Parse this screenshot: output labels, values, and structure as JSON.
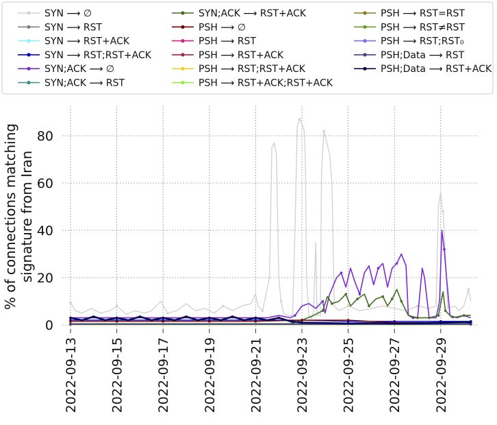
{
  "chart_data": {
    "type": "line",
    "title": "",
    "xlabel": "",
    "ylabel_lines": [
      "% of connections matching",
      "signature from Iran"
    ],
    "xlim": [
      0,
      17.3
    ],
    "ylim": [
      -1,
      92
    ],
    "grid": true,
    "legend_position": "top, outside plot, 3 columns",
    "x_ticks": [
      {
        "t": 0,
        "label": "2022-09-13"
      },
      {
        "t": 2,
        "label": "2022-09-15"
      },
      {
        "t": 4,
        "label": "2022-09-17"
      },
      {
        "t": 6,
        "label": "2022-09-19"
      },
      {
        "t": 8,
        "label": "2022-09-21"
      },
      {
        "t": 10,
        "label": "2022-09-23"
      },
      {
        "t": 12,
        "label": "2022-09-25"
      },
      {
        "t": 14,
        "label": "2022-09-27"
      },
      {
        "t": 16,
        "label": "2022-09-29"
      }
    ],
    "y_ticks": [
      {
        "v": 0,
        "label": "0"
      },
      {
        "v": 20,
        "label": "20"
      },
      {
        "v": 40,
        "label": "40"
      },
      {
        "v": 60,
        "label": "60"
      },
      {
        "v": 80,
        "label": "80"
      }
    ],
    "series": [
      {
        "name": "SYN ⟶ ∅",
        "color": "#d3d3d3",
        "marker": "1",
        "points": [
          [
            0,
            9.5
          ],
          [
            0.2,
            6
          ],
          [
            0.5,
            5
          ],
          [
            0.9,
            7
          ],
          [
            1.3,
            5
          ],
          [
            1.7,
            6
          ],
          [
            2.0,
            8
          ],
          [
            2.4,
            4.5
          ],
          [
            2.8,
            6
          ],
          [
            3.2,
            5
          ],
          [
            3.5,
            6
          ],
          [
            3.9,
            10
          ],
          [
            4.2,
            5
          ],
          [
            4.6,
            6
          ],
          [
            5.0,
            9
          ],
          [
            5.4,
            6
          ],
          [
            5.8,
            7
          ],
          [
            6.2,
            5
          ],
          [
            6.6,
            8
          ],
          [
            7.0,
            6
          ],
          [
            7.4,
            8
          ],
          [
            7.8,
            9
          ],
          [
            8.0,
            13
          ],
          [
            8.1,
            8
          ],
          [
            8.3,
            6
          ],
          [
            8.6,
            20
          ],
          [
            8.7,
            75
          ],
          [
            8.8,
            77
          ],
          [
            8.9,
            72
          ],
          [
            9.0,
            20
          ],
          [
            9.1,
            10
          ],
          [
            9.2,
            5
          ],
          [
            9.4,
            4
          ],
          [
            9.6,
            4
          ],
          [
            9.7,
            40
          ],
          [
            9.8,
            84
          ],
          [
            9.9,
            87
          ],
          [
            10.0,
            85
          ],
          [
            10.1,
            82
          ],
          [
            10.15,
            70
          ],
          [
            10.2,
            20
          ],
          [
            10.3,
            4
          ],
          [
            10.4,
            3
          ],
          [
            10.5,
            5
          ],
          [
            10.6,
            35
          ],
          [
            10.65,
            4
          ],
          [
            10.8,
            4
          ],
          [
            10.85,
            65
          ],
          [
            10.95,
            82
          ],
          [
            11.05,
            78
          ],
          [
            11.2,
            72
          ],
          [
            11.3,
            60
          ],
          [
            11.4,
            8
          ],
          [
            11.6,
            6
          ],
          [
            12.0,
            8
          ],
          [
            12.5,
            6
          ],
          [
            13.0,
            7
          ],
          [
            13.5,
            8
          ],
          [
            14.0,
            7
          ],
          [
            14.5,
            6
          ],
          [
            15.0,
            8
          ],
          [
            15.5,
            7
          ],
          [
            15.8,
            8
          ],
          [
            15.9,
            50
          ],
          [
            16.0,
            56
          ],
          [
            16.05,
            50
          ],
          [
            16.1,
            48
          ],
          [
            16.2,
            30
          ],
          [
            16.3,
            7
          ],
          [
            16.6,
            8
          ],
          [
            16.8,
            6
          ],
          [
            17.0,
            8
          ],
          [
            17.2,
            15
          ],
          [
            17.3,
            10
          ]
        ]
      },
      {
        "name": "SYN ⟶ RST",
        "color": "#808080",
        "marker": "2",
        "points": [
          [
            0,
            0.4
          ],
          [
            17.3,
            0.4
          ]
        ]
      },
      {
        "name": "SYN ⟶ RST+ACK",
        "color": "#87f5f5",
        "marker": "o",
        "points": [
          [
            0,
            0.3
          ],
          [
            17.3,
            0.3
          ]
        ]
      },
      {
        "name": "SYN ⟶ RST;RST+ACK",
        "color": "#0000cc",
        "marker": "d",
        "points": [
          [
            0,
            2
          ],
          [
            2,
            2
          ],
          [
            4,
            2
          ],
          [
            6,
            2
          ],
          [
            8,
            2
          ],
          [
            10,
            2
          ],
          [
            12,
            1.5
          ],
          [
            14,
            1.5
          ],
          [
            16,
            1.5
          ],
          [
            17.3,
            1.5
          ]
        ]
      },
      {
        "name": "SYN;ACK ⟶ ∅",
        "color": "#7b2bd4",
        "marker": "5",
        "points": [
          [
            0,
            3
          ],
          [
            1,
            3
          ],
          [
            2,
            3
          ],
          [
            3,
            3
          ],
          [
            4,
            3
          ],
          [
            5,
            3
          ],
          [
            6,
            3
          ],
          [
            7,
            3
          ],
          [
            8,
            3
          ],
          [
            8.5,
            3
          ],
          [
            9,
            4
          ],
          [
            9.5,
            3
          ],
          [
            9.7,
            4
          ],
          [
            10.0,
            8
          ],
          [
            10.3,
            9
          ],
          [
            10.6,
            7
          ],
          [
            10.9,
            10
          ],
          [
            11.0,
            5
          ],
          [
            11.2,
            13
          ],
          [
            11.5,
            20
          ],
          [
            11.7,
            22
          ],
          [
            11.9,
            16
          ],
          [
            12.1,
            24
          ],
          [
            12.3,
            18
          ],
          [
            12.5,
            13
          ],
          [
            12.7,
            22
          ],
          [
            12.9,
            25
          ],
          [
            13.1,
            17
          ],
          [
            13.3,
            24
          ],
          [
            13.5,
            26
          ],
          [
            13.7,
            16
          ],
          [
            13.9,
            24
          ],
          [
            14.1,
            26
          ],
          [
            14.3,
            30
          ],
          [
            14.5,
            25
          ],
          [
            14.6,
            4
          ],
          [
            14.8,
            3
          ],
          [
            15.0,
            3
          ],
          [
            15.2,
            24
          ],
          [
            15.3,
            20
          ],
          [
            15.5,
            3
          ],
          [
            15.8,
            3
          ],
          [
            15.95,
            10
          ],
          [
            16.05,
            40
          ],
          [
            16.15,
            32
          ],
          [
            16.25,
            20
          ],
          [
            16.4,
            4
          ],
          [
            16.7,
            3
          ],
          [
            17.0,
            4
          ],
          [
            17.3,
            3
          ]
        ]
      },
      {
        "name": "SYN;ACK ⟶ RST",
        "color": "#3f8a8a",
        "marker": "6",
        "points": [
          [
            0,
            0.5
          ],
          [
            17.3,
            0.5
          ]
        ]
      },
      {
        "name": "SYN;ACK ⟶ RST+ACK",
        "color": "#3f6f1f",
        "marker": "7",
        "points": [
          [
            0,
            0.5
          ],
          [
            9.5,
            0.5
          ],
          [
            10.0,
            2
          ],
          [
            10.5,
            4
          ],
          [
            10.9,
            6
          ],
          [
            11.1,
            12
          ],
          [
            11.3,
            9
          ],
          [
            11.6,
            10
          ],
          [
            11.9,
            13
          ],
          [
            12.1,
            8
          ],
          [
            12.4,
            11
          ],
          [
            12.7,
            13
          ],
          [
            12.9,
            8
          ],
          [
            13.2,
            11
          ],
          [
            13.5,
            12
          ],
          [
            13.7,
            8
          ],
          [
            13.9,
            11
          ],
          [
            14.1,
            15
          ],
          [
            14.3,
            10
          ],
          [
            14.6,
            4
          ],
          [
            15.0,
            3
          ],
          [
            15.5,
            3
          ],
          [
            15.9,
            4
          ],
          [
            16.1,
            14
          ],
          [
            16.2,
            6
          ],
          [
            16.5,
            3
          ],
          [
            17.0,
            4
          ],
          [
            17.3,
            4
          ]
        ]
      },
      {
        "name": "PSH ⟶ ∅",
        "color": "#7a0000",
        "marker": "8",
        "points": [
          [
            0,
            1.5
          ],
          [
            2,
            1.5
          ],
          [
            4,
            1.5
          ],
          [
            6,
            1.5
          ],
          [
            8,
            1.5
          ],
          [
            10,
            2
          ],
          [
            12,
            2
          ],
          [
            14,
            1
          ],
          [
            16,
            1
          ],
          [
            17.3,
            1
          ]
        ]
      },
      {
        "name": "PSH ⟶ RST",
        "color": "#d62080",
        "marker": "p",
        "points": [
          [
            0,
            0.2
          ],
          [
            17.3,
            0.2
          ]
        ]
      },
      {
        "name": "PSH ⟶ RST+ACK",
        "color": "#b22040",
        "marker": "x",
        "points": [
          [
            0,
            0.2
          ],
          [
            17.3,
            0.2
          ]
        ]
      },
      {
        "name": "PSH ⟶ RST;RST+ACK",
        "color": "#f2d024",
        "marker": "x",
        "points": [
          [
            0,
            0.1
          ],
          [
            17.3,
            0.1
          ]
        ]
      },
      {
        "name": "PSH ⟶ RST+ACK;RST+ACK",
        "color": "#90ee40",
        "marker": "x",
        "points": [
          [
            0,
            0.1
          ],
          [
            17.3,
            0.1
          ]
        ]
      },
      {
        "name": "PSH ⟶ RST=RST",
        "color": "#8b7a1a",
        "marker": "X",
        "points": [
          [
            0,
            0.3
          ],
          [
            17.3,
            0.3
          ]
        ]
      },
      {
        "name": "PSH ⟶ RST≠RST",
        "color": "#6b9a2a",
        "marker": "x",
        "points": [
          [
            0,
            0.2
          ],
          [
            17.3,
            0.2
          ]
        ]
      },
      {
        "name": "PSH ⟶ RST;RST₀",
        "color": "#7a70e0",
        "marker": "x",
        "points": [
          [
            0,
            0.2
          ],
          [
            17.3,
            0.2
          ]
        ]
      },
      {
        "name": "PSH;Data ⟶ RST",
        "color": "#4a3f8a",
        "marker": "X",
        "points": [
          [
            0,
            0.3
          ],
          [
            17.3,
            0.3
          ]
        ]
      },
      {
        "name": "PSH;Data ⟶ RST+ACK",
        "color": "#0a0a50",
        "marker": "v",
        "points": [
          [
            0,
            3
          ],
          [
            0.5,
            2
          ],
          [
            1,
            3.5
          ],
          [
            1.5,
            2
          ],
          [
            2,
            3
          ],
          [
            2.5,
            2
          ],
          [
            3,
            3.5
          ],
          [
            3.5,
            2
          ],
          [
            4,
            3
          ],
          [
            4.5,
            2
          ],
          [
            5,
            3.5
          ],
          [
            5.5,
            2
          ],
          [
            6,
            3
          ],
          [
            6.5,
            2
          ],
          [
            7,
            3.5
          ],
          [
            7.5,
            2
          ],
          [
            8,
            3
          ],
          [
            8.5,
            2
          ],
          [
            9,
            3
          ],
          [
            9.5,
            1.5
          ],
          [
            10,
            1
          ],
          [
            11,
            0.8
          ],
          [
            12,
            0.6
          ],
          [
            13,
            0.8
          ],
          [
            14,
            0.6
          ],
          [
            15,
            0.7
          ],
          [
            16,
            0.9
          ],
          [
            17,
            1.2
          ],
          [
            17.3,
            1
          ]
        ]
      }
    ]
  }
}
